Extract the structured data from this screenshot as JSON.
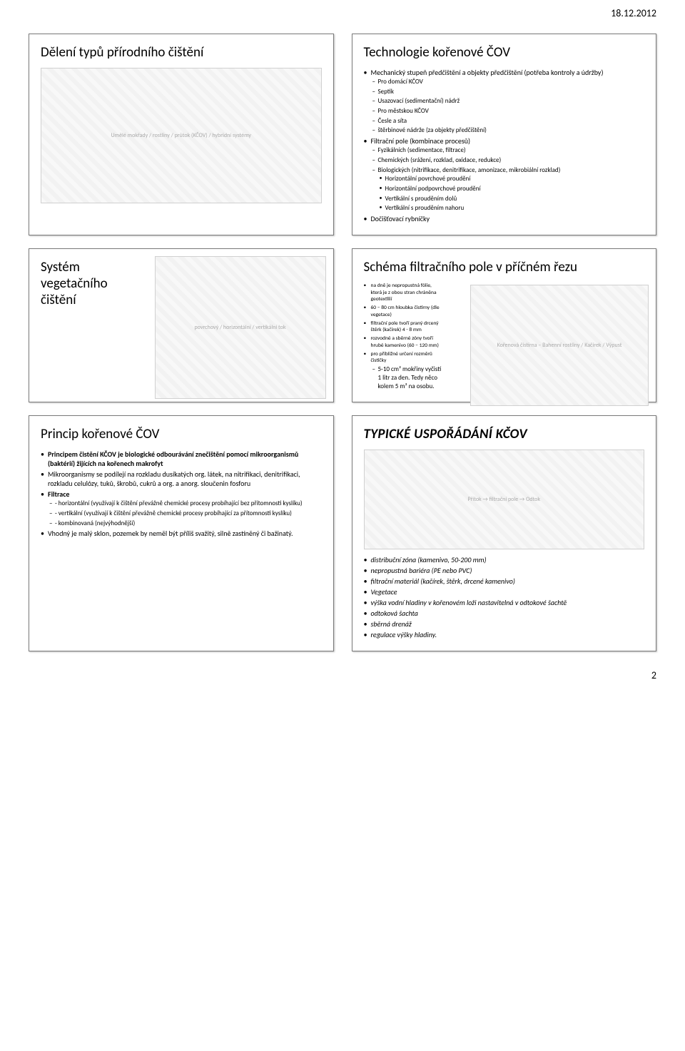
{
  "meta": {
    "date": "18.12.2012",
    "page": "2"
  },
  "slide1": {
    "title": "Dělení typů přírodního čištění",
    "diagram_label": "Umělé mokřady / rostliny / průtok (KČOV) / hybridní systémy"
  },
  "slide2": {
    "title": "Technologie kořenové ČOV",
    "items": [
      {
        "t": "Mechanický stupeň předčištění a objekty předčištění (potřeba kontroly a údržby)",
        "c": [
          {
            "t": "Pro domácí KČOV"
          },
          {
            "t": "Septik"
          },
          {
            "t": "Usazovací (sedimentační) nádrž"
          },
          {
            "t": "Pro městskou KČOV"
          },
          {
            "t": "Česle a síta"
          },
          {
            "t": "štěrbinové nádrže (za objekty předčištění)"
          }
        ]
      },
      {
        "t": "Filtrační pole (kombinace procesů)",
        "c": [
          {
            "t": "Fyzikálních (sedimentace, filtrace)"
          },
          {
            "t": "Chemických (srážení, rozklad, oxidace, redukce)"
          },
          {
            "t": "Biologických (nitrifikace, denitrifikace, amonizace, mikrobiální rozklad)",
            "c": [
              {
                "t": "Horizontální povrchové proudění"
              },
              {
                "t": "Horizontální podpovrchové proudění"
              },
              {
                "t": "Vertikální s prouděním dolů"
              },
              {
                "t": "Vertikální s prouděním nahoru"
              }
            ]
          }
        ]
      },
      {
        "t": "Dočišťovací rybníčky"
      }
    ]
  },
  "slide3": {
    "title": "Systém vegetačního čištění",
    "diagram_label": "povrchový / horizontální / vertikální tok"
  },
  "slide4": {
    "title": "Schéma filtračního pole v příčném řezu",
    "items": [
      {
        "t": "na dně je nepropustná fólie, která je z obou stran chráněna geotextilií"
      },
      {
        "t": "60 – 80 cm hloubka čistírny (dle vegetace)"
      },
      {
        "t": "filtrační pole tvoří praný drcený štěrk (kačírek) 4 - 8 mm"
      },
      {
        "t": "rozvodné a sběrné zóny tvoří hrubé kamenivo (60 – 120 mm)"
      },
      {
        "t": "pro přibližné určení rozměrů čističky",
        "c": [
          {
            "t": "5-10 cm² mokřiny vyčistí 1 litr za den. Tedy něco kolem 5 m² na osobu."
          }
        ]
      }
    ],
    "diagram_label": "Kořenová čistírna – Bahenní rostliny / Kačírek / Výpust"
  },
  "slide5": {
    "title": "Princip kořenové ČOV",
    "items": [
      {
        "t": "Principem čistění KČOV je biologické odbourávání znečištění pomocí mikroorganismů (baktérií) žijících na kořenech makrofyt",
        "bold": true
      },
      {
        "t": "Mikroorganismy se podílejí na rozkladu dusíkatých org. látek, na nitrifikaci, denitrifikaci, rozkladu celulózy, tuků, škrobů, cukrů a org. a anorg. sloučenin fosforu"
      },
      {
        "t": "Filtrace",
        "bold": true,
        "c": [
          {
            "t": "- horizontální (využívají k čištění převážně chemické procesy probíhající bez přítomnosti kyslíku)"
          },
          {
            "t": "- vertikální (využívají k čištění převážně chemické procesy probíhající za přítomnosti kyslíku)"
          },
          {
            "t": "- kombinovaná (nejvýhodnější)"
          }
        ]
      },
      {
        "t": "Vhodný je malý sklon, pozemek by neměl být příliš svažitý, silně zastíněný či bažinatý."
      }
    ]
  },
  "slide6": {
    "title": "TYPICKÉ USPOŘÁDÁNÍ KČOV",
    "diagram_label": "Přítok → filtrační pole → Odtok",
    "legend": [
      "distribuční zóna (kamenivo, 50-200 mm)",
      "nepropustná bariéra (PE nebo PVC)",
      "filtrační materiál (kačírek, štěrk, drcené kamenivo)",
      "Vegetace",
      "výška vodní hladiny v kořenovém loži nastavitelná v odtokové šachtě",
      "odtoková šachta",
      "sběrná drenáž",
      "regulace výšky hladiny."
    ]
  }
}
